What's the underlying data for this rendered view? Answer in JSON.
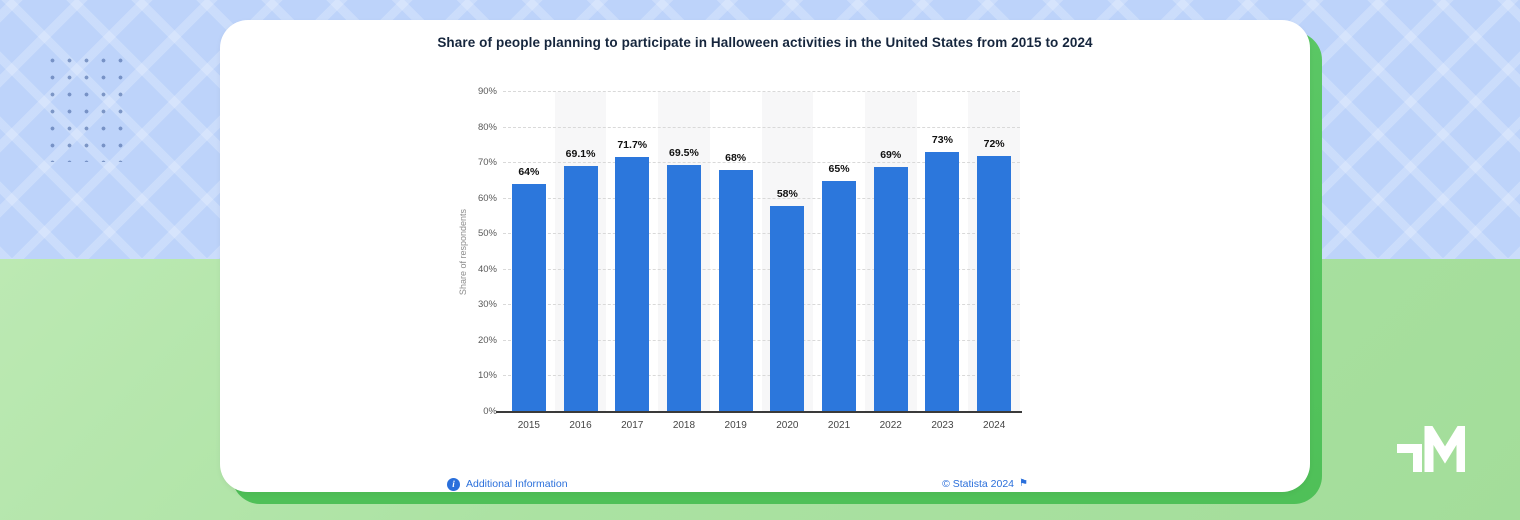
{
  "chart_data": {
    "type": "bar",
    "title": "Share of people planning to participate in Halloween activities in the United States from 2015 to 2024",
    "categories": [
      "2015",
      "2016",
      "2017",
      "2018",
      "2019",
      "2020",
      "2021",
      "2022",
      "2023",
      "2024"
    ],
    "values": [
      64,
      69.1,
      71.7,
      69.5,
      68,
      58,
      65,
      69,
      73,
      72
    ],
    "value_labels": [
      "64%",
      "69.1%",
      "71.7%",
      "69.5%",
      "68%",
      "58%",
      "65%",
      "69%",
      "73%",
      "72%"
    ],
    "xlabel": "",
    "ylabel": "Share of respondents",
    "ylim": [
      0,
      90
    ],
    "ytick_step": 10,
    "yticks": [
      "0%",
      "10%",
      "20%",
      "30%",
      "40%",
      "50%",
      "60%",
      "70%",
      "80%",
      "90%"
    ],
    "grid": "horizontal-dashed",
    "legend_position": "none",
    "bar_color": "#2c77dc",
    "alt_column_band_color": "#f7f7f8"
  },
  "footer": {
    "additional_info_label": "Additional Information",
    "copyright_label": "© Statista 2024",
    "info_icon_glyph": "i",
    "flag_icon_glyph": "⚑"
  },
  "colors": {
    "background_top_blue": "#bdd3fa",
    "background_bottom_green": "#abe2a2",
    "accent_green_card": "#53c25d",
    "link_blue": "#2a6fdb",
    "title_navy": "#16263d",
    "dot_pattern_blue": "#4867a3"
  }
}
